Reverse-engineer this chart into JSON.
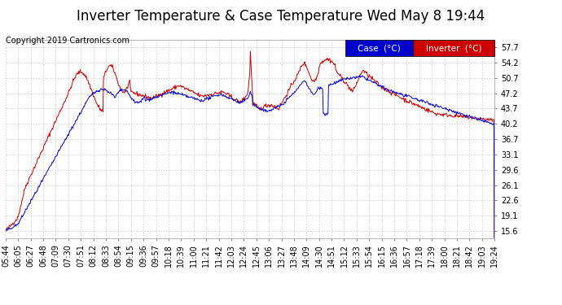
{
  "title": "Inverter Temperature & Case Temperature Wed May 8 19:44",
  "copyright": "Copyright 2019 Cartronics.com",
  "legend_case_label": "Case  (°C)",
  "legend_inverter_label": "Inverter  (°C)",
  "legend_case_color": "#0000cc",
  "legend_inverter_color": "#cc0000",
  "case_line_color": "#0000cc",
  "inverter_line_color": "#cc0000",
  "yticks": [
    15.6,
    19.1,
    22.6,
    26.1,
    29.6,
    33.1,
    36.7,
    40.2,
    43.7,
    47.2,
    50.7,
    54.2,
    57.7
  ],
  "ymin": 14.0,
  "ymax": 59.5,
  "xtick_labels": [
    "05:44",
    "06:05",
    "06:27",
    "06:48",
    "07:09",
    "07:30",
    "07:51",
    "08:12",
    "08:33",
    "08:54",
    "09:15",
    "09:36",
    "09:57",
    "10:18",
    "10:39",
    "11:00",
    "11:21",
    "11:42",
    "12:03",
    "12:24",
    "12:45",
    "13:06",
    "13:27",
    "13:48",
    "14:09",
    "14:30",
    "14:51",
    "15:12",
    "15:33",
    "15:54",
    "16:15",
    "16:36",
    "16:57",
    "17:18",
    "17:39",
    "18:00",
    "18:21",
    "18:42",
    "19:03",
    "19:24"
  ],
  "bg_color": "#ffffff",
  "grid_color": "#bbbbbb",
  "title_fontsize": 12,
  "copyright_fontsize": 7,
  "tick_fontsize": 7
}
